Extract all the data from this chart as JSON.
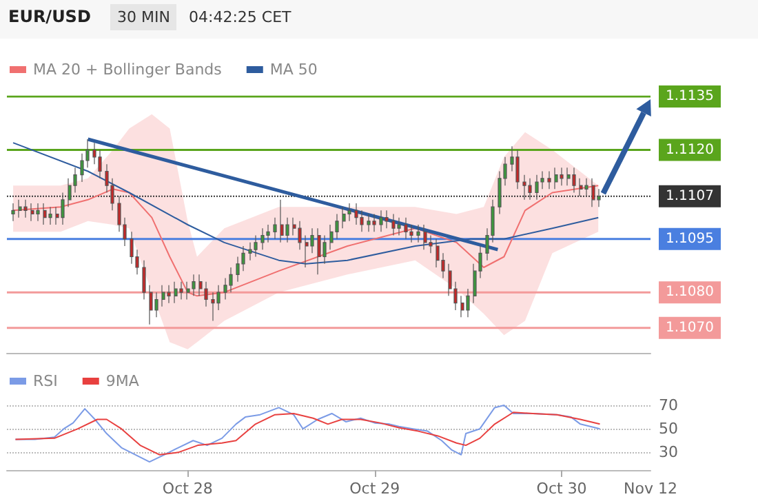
{
  "chart_data": [
    {
      "type": "candlestick",
      "title": "EUR/USD",
      "subtitle": "30 MIN",
      "annotations": [
        "04:42:25 CET"
      ],
      "x": [
        "--10-27T01:36",
        "--10-27T02:24",
        "--10-27T03:12",
        "--10-27T04:00",
        "--10-27T04:48",
        "--10-27T05:36",
        "--10-27T06:24",
        "--10-27T07:12",
        "--10-27T08:00",
        "--10-27T08:48",
        "--10-27T09:36",
        "--10-27T10:24",
        "--10-27T11:12",
        "--10-27T12:00",
        "--10-27T12:48",
        "--10-27T13:36",
        "--10-27T14:24",
        "--10-27T15:12",
        "--10-27T16:00",
        "--10-27T16:48",
        "--10-27T17:36",
        "--10-27T18:24",
        "--10-27T19:12",
        "--10-27T20:00",
        "--10-27T20:48",
        "--10-27T21:36",
        "--10-27T22:24",
        "--10-27T23:12",
        "--10-28T00:00",
        "--10-28T00:48",
        "--10-28T01:36",
        "--10-28T02:24",
        "--10-28T03:12",
        "--10-28T04:00",
        "--10-28T04:48",
        "--10-28T05:36",
        "--10-28T06:24",
        "--10-28T07:12",
        "--10-28T08:00",
        "--10-28T08:48",
        "--10-28T09:36",
        "--10-28T10:24",
        "--10-28T11:12",
        "--10-28T12:00",
        "--10-28T12:48",
        "--10-28T13:36",
        "--10-28T14:24",
        "--10-28T15:12",
        "--10-28T16:00",
        "--10-28T16:48",
        "--10-28T17:36",
        "--10-28T18:24",
        "--10-28T19:12",
        "--10-28T20:00",
        "--10-28T20:48",
        "--10-28T21:36",
        "--10-28T22:24",
        "--10-28T23:12",
        "--10-29T00:00",
        "--10-29T00:48",
        "--10-29T01:36",
        "--10-29T02:24",
        "--10-29T03:12",
        "--10-29T04:00",
        "--10-29T04:48",
        "--10-29T05:36",
        "--10-29T06:24",
        "--10-29T07:12",
        "--10-29T08:00",
        "--10-29T08:48",
        "--10-29T09:36",
        "--10-29T10:24",
        "--10-29T11:12",
        "--10-29T12:00",
        "--10-29T12:48",
        "--10-29T13:36",
        "--10-29T14:24",
        "--10-29T15:12",
        "--10-29T16:00",
        "--10-29T16:48",
        "--10-29T17:36",
        "--10-29T18:24",
        "--10-29T19:12",
        "--10-29T20:00",
        "--10-29T20:48",
        "--10-29T21:36",
        "--10-29T22:24",
        "--10-29T23:12",
        "--10-30T00:00",
        "--10-30T00:48",
        "--10-30T01:36",
        "--10-30T02:24",
        "--10-30T03:12",
        "--10-30T04:00",
        "--10-30T04:48"
      ],
      "ohlc": [
        [
          1.1102,
          1.1105,
          1.11,
          1.1103
        ],
        [
          1.1103,
          1.1106,
          1.1101,
          1.1104
        ],
        [
          1.1104,
          1.1106,
          1.1101,
          1.1103
        ],
        [
          1.1103,
          1.1105,
          1.11,
          1.1102
        ],
        [
          1.1102,
          1.1105,
          1.11,
          1.1103
        ],
        [
          1.1103,
          1.1105,
          1.1099,
          1.1101
        ],
        [
          1.1101,
          1.1104,
          1.1099,
          1.1102
        ],
        [
          1.1102,
          1.1104,
          1.1099,
          1.1101
        ],
        [
          1.1101,
          1.1108,
          1.1099,
          1.1106
        ],
        [
          1.1106,
          1.1112,
          1.1104,
          1.111
        ],
        [
          1.111,
          1.1115,
          1.1108,
          1.1113
        ],
        [
          1.1113,
          1.1119,
          1.1111,
          1.1117
        ],
        [
          1.1117,
          1.1123,
          1.1115,
          1.112
        ],
        [
          1.112,
          1.1122,
          1.1116,
          1.1118
        ],
        [
          1.1118,
          1.112,
          1.1112,
          1.1114
        ],
        [
          1.1114,
          1.1116,
          1.1108,
          1.111
        ],
        [
          1.111,
          1.1112,
          1.1103,
          1.1105
        ],
        [
          1.1105,
          1.1107,
          1.1097,
          1.1099
        ],
        [
          1.1099,
          1.1101,
          1.1093,
          1.1095
        ],
        [
          1.1095,
          1.1097,
          1.1088,
          1.109
        ],
        [
          1.109,
          1.1092,
          1.1085,
          1.1087
        ],
        [
          1.1087,
          1.1089,
          1.1078,
          1.108
        ],
        [
          1.108,
          1.1082,
          1.1071,
          1.1075
        ],
        [
          1.1075,
          1.108,
          1.1073,
          1.1078
        ],
        [
          1.1078,
          1.1082,
          1.1076,
          1.108
        ],
        [
          1.108,
          1.1082,
          1.1077,
          1.1079
        ],
        [
          1.1079,
          1.1083,
          1.1077,
          1.1081
        ],
        [
          1.1081,
          1.1083,
          1.1078,
          1.108
        ],
        [
          1.108,
          1.1083,
          1.1078,
          1.1081
        ],
        [
          1.1081,
          1.1085,
          1.1079,
          1.1083
        ],
        [
          1.1083,
          1.1085,
          1.1079,
          1.1081
        ],
        [
          1.1081,
          1.1083,
          1.1076,
          1.1078
        ],
        [
          1.1078,
          1.108,
          1.1072,
          1.1077
        ],
        [
          1.1077,
          1.1082,
          1.1075,
          1.108
        ],
        [
          1.108,
          1.1084,
          1.1078,
          1.1082
        ],
        [
          1.1082,
          1.1087,
          1.108,
          1.1085
        ],
        [
          1.1085,
          1.109,
          1.1083,
          1.1088
        ],
        [
          1.1088,
          1.1093,
          1.1086,
          1.1091
        ],
        [
          1.1091,
          1.1094,
          1.1089,
          1.1092
        ],
        [
          1.1092,
          1.1096,
          1.109,
          1.1094
        ],
        [
          1.1094,
          1.1098,
          1.1092,
          1.1096
        ],
        [
          1.1096,
          1.1099,
          1.1094,
          1.1097
        ],
        [
          1.1097,
          1.1101,
          1.1095,
          1.1099
        ],
        [
          1.1099,
          1.1106,
          1.1094,
          1.1096
        ],
        [
          1.1096,
          1.1101,
          1.1094,
          1.1099
        ],
        [
          1.1099,
          1.1101,
          1.1096,
          1.1098
        ],
        [
          1.1098,
          1.11,
          1.1092,
          1.1094
        ],
        [
          1.1094,
          1.1096,
          1.1087,
          1.1093
        ],
        [
          1.1093,
          1.1098,
          1.1091,
          1.1096
        ],
        [
          1.1096,
          1.1098,
          1.1085,
          1.109
        ],
        [
          1.109,
          1.1096,
          1.1088,
          1.1094
        ],
        [
          1.1094,
          1.1099,
          1.1092,
          1.1097
        ],
        [
          1.1097,
          1.1102,
          1.1095,
          1.11
        ],
        [
          1.11,
          1.1104,
          1.1098,
          1.1102
        ],
        [
          1.1102,
          1.1105,
          1.11,
          1.1103
        ],
        [
          1.1103,
          1.1105,
          1.1099,
          1.1101
        ],
        [
          1.1101,
          1.1103,
          1.1097,
          1.1099
        ],
        [
          1.1099,
          1.1102,
          1.1097,
          1.11
        ],
        [
          1.11,
          1.1102,
          1.1097,
          1.1099
        ],
        [
          1.1099,
          1.1103,
          1.1097,
          1.1101
        ],
        [
          1.1101,
          1.1103,
          1.1098,
          1.11
        ],
        [
          1.11,
          1.1102,
          1.1096,
          1.1098
        ],
        [
          1.1098,
          1.1101,
          1.1096,
          1.1099
        ],
        [
          1.1099,
          1.1101,
          1.1095,
          1.1097
        ],
        [
          1.1097,
          1.1099,
          1.1094,
          1.1096
        ],
        [
          1.1096,
          1.1099,
          1.1094,
          1.1097
        ],
        [
          1.1097,
          1.1099,
          1.1092,
          1.1094
        ],
        [
          1.1094,
          1.1096,
          1.1091,
          1.1093
        ],
        [
          1.1093,
          1.1095,
          1.1087,
          1.1089
        ],
        [
          1.1089,
          1.1091,
          1.1084,
          1.1086
        ],
        [
          1.1086,
          1.1088,
          1.1079,
          1.1081
        ],
        [
          1.1081,
          1.1083,
          1.1075,
          1.1077
        ],
        [
          1.1077,
          1.1079,
          1.1073,
          1.1075
        ],
        [
          1.1075,
          1.1081,
          1.1073,
          1.1079
        ],
        [
          1.1079,
          1.1088,
          1.1077,
          1.1086
        ],
        [
          1.1086,
          1.1093,
          1.1084,
          1.1091
        ],
        [
          1.1091,
          1.1098,
          1.1089,
          1.1096
        ],
        [
          1.1096,
          1.1106,
          1.1094,
          1.1104
        ],
        [
          1.1104,
          1.1114,
          1.1102,
          1.1112
        ],
        [
          1.1112,
          1.1118,
          1.111,
          1.1116
        ],
        [
          1.1116,
          1.1121,
          1.1114,
          1.1118
        ],
        [
          1.1118,
          1.112,
          1.1109,
          1.1111
        ],
        [
          1.1111,
          1.1113,
          1.1106,
          1.111
        ],
        [
          1.111,
          1.1112,
          1.1106,
          1.1108
        ],
        [
          1.1108,
          1.1113,
          1.1106,
          1.1111
        ],
        [
          1.1111,
          1.1114,
          1.1109,
          1.1112
        ],
        [
          1.1112,
          1.1114,
          1.1109,
          1.1111
        ],
        [
          1.1111,
          1.1115,
          1.1109,
          1.1113
        ],
        [
          1.1113,
          1.1115,
          1.111,
          1.1112
        ],
        [
          1.1112,
          1.1115,
          1.111,
          1.1113
        ],
        [
          1.1113,
          1.1115,
          1.1108,
          1.111
        ],
        [
          1.111,
          1.1112,
          1.1107,
          1.1109
        ],
        [
          1.1109,
          1.1112,
          1.1107,
          1.111
        ],
        [
          1.111,
          1.1112,
          1.1104,
          1.1106
        ],
        [
          1.1106,
          1.1109,
          1.1104,
          1.1107
        ]
      ],
      "series": [
        {
          "type": "line",
          "name": "MA 20 + Bollinger Bands",
          "color": "#f07070",
          "x": [
            "--10-27T01:36",
            "--10-27T07:42",
            "--10-27T11:12",
            "--10-27T14:24",
            "--10-27T16:30",
            "--10-27T19:24",
            "--10-27T21:42",
            "--10-28T00:00",
            "--10-28T01:12",
            "--10-28T04:42",
            "--10-28T11:42",
            "--10-28T20:30",
            "--10-29T05:12",
            "--10-29T10:30",
            "--10-29T14:00",
            "--10-29T16:36",
            "--10-29T19:18",
            "--10-29T22:48",
            "--10-30T04:42"
          ],
          "values": [
            1.1103,
            1.1104,
            1.1106,
            1.1109,
            1.1108,
            1.1101,
            1.109,
            1.108,
            1.1079,
            1.108,
            1.1086,
            1.1093,
            1.1098,
            1.1094,
            1.1087,
            1.109,
            1.1103,
            1.1108,
            1.111
          ],
          "upper": [
            1.111,
            1.111,
            1.1112,
            1.112,
            1.1126,
            1.113,
            1.1126,
            1.11,
            1.109,
            1.1098,
            1.1104,
            1.1104,
            1.1104,
            1.1102,
            1.1104,
            1.1118,
            1.1125,
            1.112,
            1.111
          ],
          "lower": [
            1.1097,
            1.1097,
            1.11,
            1.1099,
            1.1098,
            1.108,
            1.1066,
            1.1064,
            1.1066,
            1.1072,
            1.108,
            1.1085,
            1.1089,
            1.1081,
            1.1074,
            1.1068,
            1.1072,
            1.1091,
            1.1097
          ]
        },
        {
          "type": "line",
          "name": "MA 50",
          "color": "#2e5c9e",
          "x": [
            "--10-27T01:36",
            "--10-27T11:12",
            "--10-27T16:30",
            "--10-28T00:00",
            "--10-28T04:42",
            "--10-28T11:42",
            "--10-28T15:12",
            "--10-28T20:30",
            "--10-29T05:12",
            "--10-29T12:18",
            "--10-29T16:36",
            "--10-29T22:48",
            "--10-30T04:42"
          ],
          "values": [
            1.1122,
            1.1114,
            1.1108,
            1.1099,
            1.1094,
            1.1089,
            1.1088,
            1.1089,
            1.1093,
            1.1095,
            1.1095,
            1.1098,
            1.1101
          ]
        },
        {
          "type": "line",
          "color": "#2e5c9e",
          "x": [
            "--10-27T11:12",
            "--10-29T15:48"
          ],
          "values": [
            1.1123,
            1.1092
          ]
        }
      ],
      "xlim": [
        "--10-27T00:48",
        "--10-30T11:24"
      ],
      "ylim": [
        1.1063,
        1.1135
      ],
      "yticks": [
        {
          "value": 1.107,
          "label": "1.1070"
        },
        {
          "value": 1.108,
          "label": "1.1080"
        },
        1.1095,
        1.1107,
        {
          "value": 1.112,
          "label": "1.1120"
        },
        1.1135
      ],
      "ref_lines": [
        {
          "axis": "y",
          "value": 1.1135,
          "color": "#5aa51c"
        },
        {
          "axis": "y",
          "value": 1.112,
          "color": "#5aa51c"
        },
        {
          "axis": "y",
          "value": 1.1107,
          "color": "#333333",
          "line_style": "dotted"
        },
        {
          "axis": "y",
          "value": 1.1095,
          "color": "#4a7fe0"
        },
        {
          "axis": "y",
          "value": 1.108,
          "color": "#f39a9a"
        },
        {
          "axis": "y",
          "value": 1.107,
          "color": "#f39a9a"
        }
      ],
      "tick_labels": "y",
      "legend": "top left",
      "marker": "none",
      "grid": false
    },
    {
      "type": "line",
      "series": [
        {
          "name": "RSI",
          "color": "#7b9be6",
          "x": [
            "--10-27T01:54",
            "--10-27T04:24",
            "--10-27T06:54",
            "--10-27T08:06",
            "--10-27T09:18",
            "--10-27T10:48",
            "--10-27T12:06",
            "--10-27T13:36",
            "--10-27T15:30",
            "--10-27T17:18",
            "--10-27T19:06",
            "--10-27T21:00",
            "--10-27T22:48",
            "--10-28T00:42",
            "--10-28T02:30",
            "--10-28T04:24",
            "--10-28T06:12",
            "--10-28T07:24",
            "--10-28T09:18",
            "--10-28T11:42",
            "--10-28T13:36",
            "--10-28T14:48",
            "--10-28T16:42",
            "--10-28T18:30",
            "--10-28T20:18",
            "--10-28T22:12",
            "--10-29T00:00",
            "--10-29T01:54",
            "--10-29T03:06",
            "--10-29T04:54",
            "--10-29T06:48",
            "--10-29T08:36",
            "--10-29T09:54",
            "--10-29T11:06",
            "--10-29T11:42",
            "--10-29T13:30",
            "--10-29T15:24",
            "--10-29T16:36",
            "--10-29T17:48",
            "--10-29T20:18",
            "--10-29T23:24",
            "--10-30T01:12",
            "--10-30T02:24",
            "--10-30T04:18",
            "--10-30T04:54"
          ],
          "values": [
            41,
            41,
            43,
            50,
            55,
            67,
            58,
            46,
            34,
            28,
            22,
            28,
            34,
            40,
            36,
            42,
            54,
            60,
            62,
            68,
            62,
            50,
            58,
            63,
            56,
            59,
            55,
            54,
            52,
            50,
            48,
            40,
            32,
            28,
            46,
            50,
            68,
            70,
            63,
            63,
            62,
            60,
            54,
            51,
            50
          ]
        },
        {
          "name": "9MA",
          "color": "#e8403f",
          "x": [
            "--10-27T01:54",
            "--10-27T06:54",
            "--10-27T09:54",
            "--10-27T12:24",
            "--10-27T13:36",
            "--10-27T15:30",
            "--10-27T17:54",
            "--10-27T20:24",
            "--10-27T22:48",
            "--10-28T01:18",
            "--10-28T04:24",
            "--10-28T06:12",
            "--10-28T08:42",
            "--10-28T11:12",
            "--10-28T13:36",
            "--10-28T16:06",
            "--10-28T18:00",
            "--10-28T19:48",
            "--10-28T22:12",
            "--10-29T00:42",
            "--10-29T03:06",
            "--10-29T05:36",
            "--10-29T08:06",
            "--10-29T10:30",
            "--10-29T11:42",
            "--10-29T13:30",
            "--10-29T15:24",
            "--10-29T17:48",
            "--10-29T20:18",
            "--10-29T23:24",
            "--10-30T02:24",
            "--10-30T04:54"
          ],
          "values": [
            41,
            42,
            50,
            58,
            58,
            50,
            36,
            28,
            30,
            36,
            38,
            40,
            54,
            62,
            63,
            59,
            54,
            58,
            58,
            55,
            51,
            48,
            44,
            38,
            36,
            42,
            54,
            64,
            63,
            62,
            58,
            54
          ]
        }
      ],
      "xlim": [
        "--10-27T00:48",
        "--10-30T11:24"
      ],
      "xticks": [
        {
          "value": "--10-28",
          "label": "Oct 28"
        },
        {
          "value": "--10-29",
          "label": "Oct 29"
        },
        {
          "value": "--10-30",
          "label": "Oct 30"
        }
      ],
      "annotations": [
        "Nov 12"
      ],
      "ylim": [
        15,
        70
      ],
      "yticks": [
        30,
        50,
        70
      ],
      "grid": "y",
      "legend": "top left",
      "marker": "none"
    }
  ]
}
